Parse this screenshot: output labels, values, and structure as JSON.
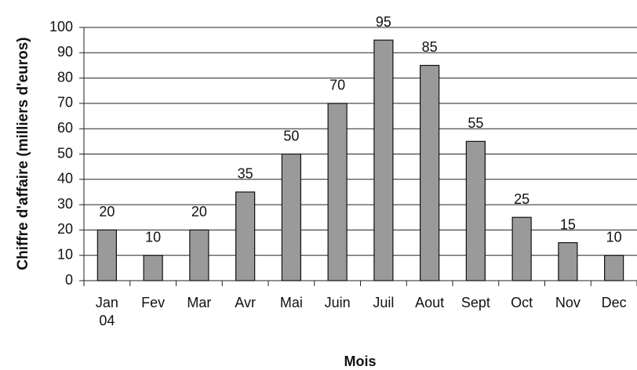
{
  "chart_data": {
    "type": "bar",
    "x_label": "Mois",
    "y_label": "Chiffre d'affaire (milliers d'euros)",
    "categories": [
      "Jan 04",
      "Fev",
      "Mar",
      "Avr",
      "Mai",
      "Juin",
      "Juil",
      "Aout",
      "Sept",
      "Oct",
      "Nov",
      "Dec"
    ],
    "values": [
      20,
      10,
      20,
      35,
      50,
      70,
      95,
      85,
      55,
      25,
      15,
      10
    ],
    "color": "#9a9a9a",
    "ylim": [
      0,
      100
    ],
    "yticks": [
      0,
      10,
      20,
      30,
      40,
      50,
      60,
      70,
      80,
      90,
      100
    ],
    "grid": true
  }
}
